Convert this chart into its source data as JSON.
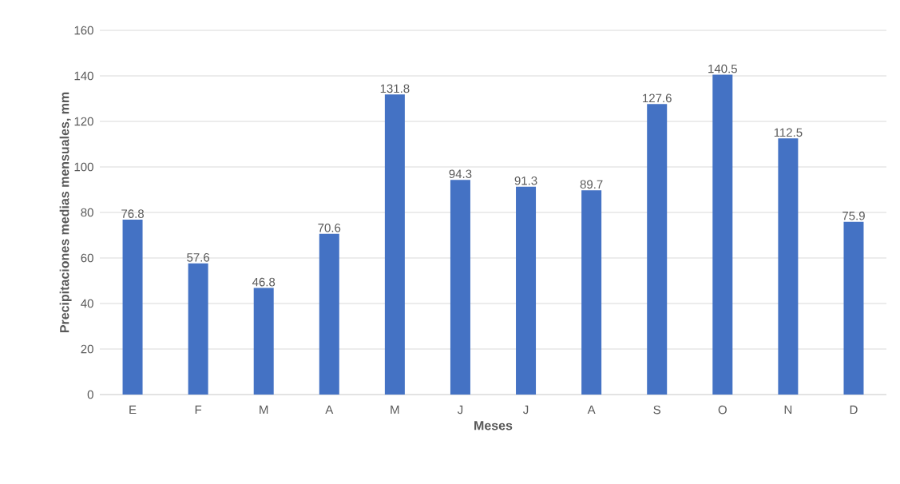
{
  "chart_data": {
    "type": "bar",
    "xlabel": "Meses",
    "ylabel": "Precipitaciones medias mensuales, mm",
    "categories": [
      "E",
      "F",
      "M",
      "A",
      "M",
      "J",
      "J",
      "A",
      "S",
      "O",
      "N",
      "D"
    ],
    "values": [
      76.8,
      57.6,
      46.8,
      70.6,
      131.8,
      94.3,
      91.3,
      89.7,
      127.6,
      140.5,
      112.5,
      75.9
    ],
    "color": "#4472c4",
    "ylim": [
      0,
      160
    ],
    "yticks": [
      0,
      20,
      40,
      60,
      80,
      100,
      120,
      140,
      160
    ],
    "grid": "y",
    "data_labels": true
  }
}
